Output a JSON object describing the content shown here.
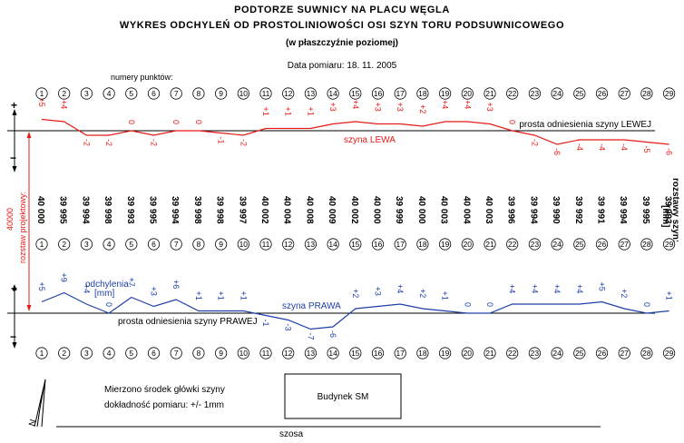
{
  "title_line1": "PODTORZE SUWNICY NA PLACU WĘGLA",
  "title_line2": "WYKRES ODCHYLEŃ OD PROSTOLINIOWOŚCI OSI SZYN TORU PODSUWNICOWEGO",
  "title_line3": "(w płaszczyźnie poziomej)",
  "date_label": "Data pomiaru:  18. 11. 2005",
  "point_numbers_label": "numery punktów:",
  "points": [
    1,
    2,
    3,
    4,
    5,
    6,
    7,
    8,
    9,
    10,
    11,
    12,
    13,
    14,
    15,
    16,
    17,
    18,
    19,
    20,
    21,
    22,
    23,
    24,
    25,
    26,
    27,
    28,
    29
  ],
  "left_rail": {
    "reference_label": "prosta odniesienia szyny LEWEJ",
    "rail_label": "szyna  LEWA",
    "deviation_labels": [
      "+5",
      "+4",
      "-2",
      "-2",
      "0",
      "-2",
      "0",
      "0",
      "-1",
      "-2",
      "+1",
      "+1",
      "+1",
      "+3",
      "+4",
      "+3",
      "+3",
      "+2",
      "+4",
      "+4",
      "+3",
      "0",
      "-2",
      "-6",
      "-4",
      "-4",
      "-4",
      "-5",
      "-6"
    ],
    "deviations_mm": [
      5,
      4,
      -2,
      -2,
      0,
      -2,
      0,
      0,
      -1,
      -2,
      1,
      1,
      1,
      3,
      4,
      3,
      3,
      2,
      4,
      4,
      3,
      0,
      -2,
      -6,
      -4,
      -4,
      -4,
      -5,
      -6
    ],
    "color": "#e41b17"
  },
  "right_rail": {
    "reference_label": "prosta odniesienia szyny PRAWEJ",
    "rail_label": "szyna  PRAWA",
    "deviations_title": "odchylenia:",
    "deviations_unit": "[mm]",
    "deviation_labels": [
      "+5",
      "+9",
      "+4",
      "0",
      "+7",
      "+3",
      "+6",
      "+1",
      "+1",
      "+1",
      "-1",
      "-3",
      "-7",
      "-6",
      "+2",
      "+3",
      "+4",
      "+2",
      "+1",
      "0",
      "0",
      "+4",
      "+4",
      "+4",
      "+4",
      "+5",
      "+2",
      "0",
      "+1"
    ],
    "deviations_mm": [
      5,
      9,
      4,
      0,
      7,
      3,
      6,
      1,
      1,
      1,
      -1,
      -3,
      -7,
      -6,
      2,
      3,
      4,
      2,
      1,
      0,
      0,
      4,
      4,
      4,
      4,
      5,
      2,
      0,
      1
    ],
    "color": "#1f3fa6"
  },
  "gauges_mm": [
    "40 000",
    "39 995",
    "39 994",
    "39 998",
    "39 993",
    "39 995",
    "39 994",
    "39 998",
    "39 998",
    "39 997",
    "40 002",
    "40 004",
    "40 008",
    "40 009",
    "40 002",
    "40 000",
    "39 999",
    "40 000",
    "40 003",
    "40 004",
    "40 003",
    "39 996",
    "39 994",
    "39 990",
    "39 992",
    "39 991",
    "39 994",
    "39 995",
    "39 993"
  ],
  "gauge_axis_label": "rozstawy szyn:",
  "gauge_axis_unit": "[mm]",
  "design_gauge_label": "rozstaw projektowy:",
  "design_gauge_value": "40000",
  "plus_sign": "+",
  "minus_sign": "−",
  "note_line1": "Mierzono środek główki szyny",
  "note_line2": "dokładność pomiaru: +/- 1mm",
  "building_label": "Budynek SM",
  "road_label": "szosa",
  "north_label": "N"
}
